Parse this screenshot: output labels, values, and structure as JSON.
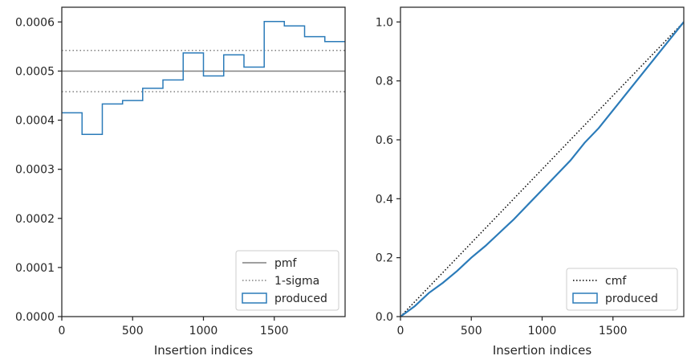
{
  "chart_data": [
    {
      "type": "line",
      "xlabel": "Insertion indices",
      "ylabel": "",
      "xlim": [
        0,
        2000
      ],
      "ylim": [
        0,
        0.00063
      ],
      "xticks": [
        0,
        500,
        1000,
        1500
      ],
      "xtick_labels": [
        "0",
        "500",
        "1000",
        "1500"
      ],
      "yticks": [
        0,
        0.0001,
        0.0002,
        0.0003,
        0.0004,
        0.0005,
        0.0006
      ],
      "ytick_labels": [
        "0.0000",
        "0.0001",
        "0.0002",
        "0.0003",
        "0.0004",
        "0.0005",
        "0.0006"
      ],
      "grid": false,
      "legend_position": "lower-right",
      "colors": {
        "produced": "#2b7bb9",
        "reference": "#808080"
      },
      "series": [
        {
          "name": "pmf",
          "style": "solid",
          "y": 0.0005
        },
        {
          "name": "1-sigma",
          "style": "dotted",
          "y": [
            0.000458,
            0.000542
          ]
        },
        {
          "name": "produced",
          "style": "step-histogram",
          "bin_edges": [
            0,
            143,
            286,
            429,
            571,
            714,
            857,
            1000,
            1143,
            1286,
            1429,
            1571,
            1714,
            1857,
            2000
          ],
          "values": [
            0.000415,
            0.000371,
            0.000433,
            0.00044,
            0.000465,
            0.000482,
            0.000537,
            0.00049,
            0.000533,
            0.000508,
            0.000601,
            0.000592,
            0.00057,
            0.00056
          ]
        }
      ]
    },
    {
      "type": "line",
      "xlabel": "Insertion indices",
      "ylabel": "",
      "xlim": [
        0,
        2000
      ],
      "ylim": [
        0,
        1.05
      ],
      "xticks": [
        0,
        500,
        1000,
        1500
      ],
      "xtick_labels": [
        "0",
        "500",
        "1000",
        "1500"
      ],
      "yticks": [
        0,
        0.2,
        0.4,
        0.6,
        0.8,
        1.0
      ],
      "ytick_labels": [
        "0.0",
        "0.2",
        "0.4",
        "0.6",
        "0.8",
        "1.0"
      ],
      "grid": false,
      "legend_position": "lower-right",
      "colors": {
        "produced": "#2b7bb9",
        "reference": "#000000"
      },
      "series": [
        {
          "name": "cmf",
          "style": "dotted",
          "x": [
            0,
            2000
          ],
          "y": [
            0,
            1
          ]
        },
        {
          "name": "produced",
          "style": "solid",
          "x": [
            0,
            100,
            200,
            300,
            400,
            500,
            600,
            700,
            800,
            900,
            1000,
            1100,
            1200,
            1300,
            1400,
            1500,
            1600,
            1700,
            1800,
            1900,
            2000
          ],
          "y": [
            0,
            0.035,
            0.08,
            0.115,
            0.155,
            0.2,
            0.24,
            0.285,
            0.33,
            0.38,
            0.43,
            0.48,
            0.53,
            0.59,
            0.64,
            0.7,
            0.76,
            0.82,
            0.88,
            0.94,
            1.0
          ]
        }
      ]
    }
  ]
}
